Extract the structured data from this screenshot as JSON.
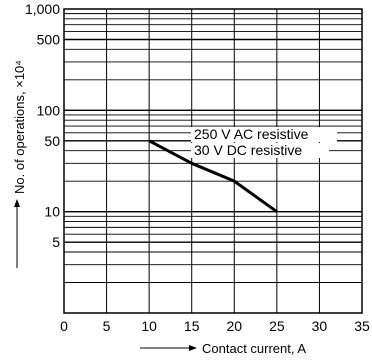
{
  "chart_data": {
    "type": "line",
    "xlabel": "Contact current, A",
    "ylabel": "No. of operations, ×10⁴",
    "x_ticks": [
      0,
      5,
      10,
      15,
      20,
      25,
      30,
      35
    ],
    "x_tick_labels": [
      "0",
      "5",
      "10",
      "15",
      "20",
      "25",
      "30",
      "35"
    ],
    "xlim": [
      0,
      35
    ],
    "y_scale": "log",
    "ylim": [
      1,
      1000
    ],
    "y_tick_values": [
      5,
      10,
      50,
      100,
      500,
      1000
    ],
    "y_tick_labels": [
      "5",
      "10",
      "50",
      "100",
      "500",
      "1,000"
    ],
    "grid": true,
    "series": [
      {
        "points": [
          {
            "x": 10,
            "y": 50
          },
          {
            "x": 15,
            "y": 30
          },
          {
            "x": 20,
            "y": 20
          },
          {
            "x": 25,
            "y": 10
          }
        ]
      }
    ],
    "annotations": [
      "250 V AC resistive",
      "30 V DC resistive"
    ]
  }
}
